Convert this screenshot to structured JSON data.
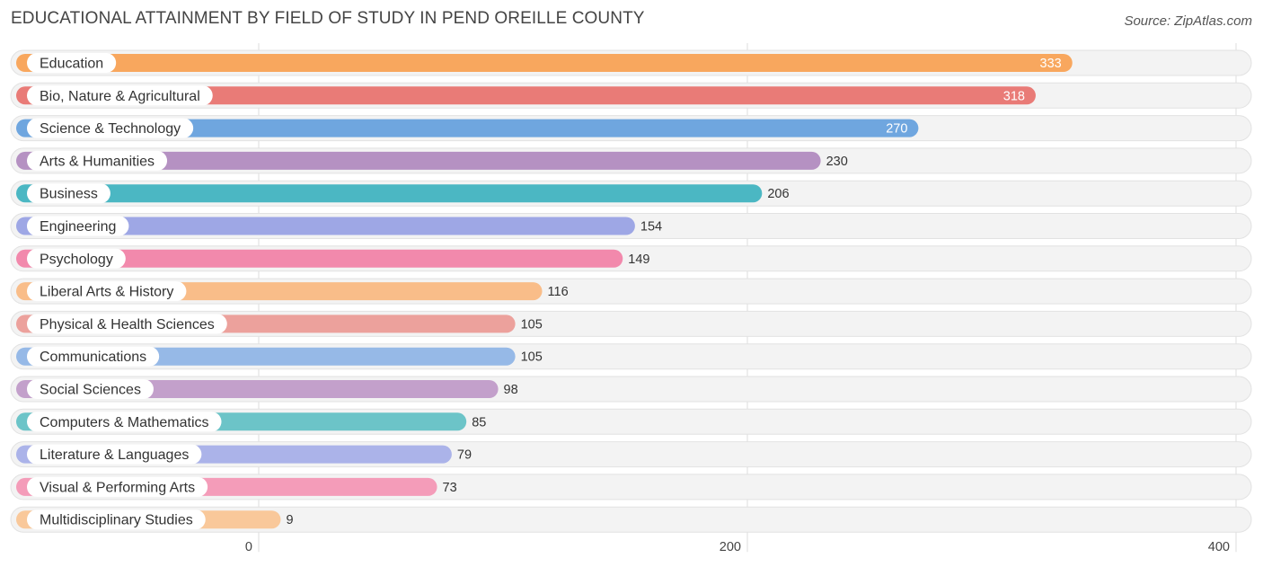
{
  "header": {
    "title": "EDUCATIONAL ATTAINMENT BY FIELD OF STUDY IN PEND OREILLE COUNTY",
    "source": "Source: ZipAtlas.com"
  },
  "chart_data": {
    "type": "bar",
    "orientation": "horizontal",
    "title": "EDUCATIONAL ATTAINMENT BY FIELD OF STUDY IN PEND OREILLE COUNTY",
    "xlabel": "",
    "ylabel": "",
    "xlim": [
      0,
      400
    ],
    "ticks": [
      0,
      200,
      400
    ],
    "grid": true,
    "categories": [
      "Education",
      "Bio, Nature & Agricultural",
      "Science & Technology",
      "Arts & Humanities",
      "Business",
      "Engineering",
      "Psychology",
      "Liberal Arts & History",
      "Physical & Health Sciences",
      "Communications",
      "Social Sciences",
      "Computers & Mathematics",
      "Literature & Languages",
      "Visual & Performing Arts",
      "Multidisciplinary Studies"
    ],
    "values": [
      333,
      318,
      270,
      230,
      206,
      154,
      149,
      116,
      105,
      105,
      98,
      85,
      79,
      73,
      9
    ],
    "value_labels": [
      "333",
      "318",
      "270",
      "230",
      "206",
      "154",
      "149",
      "116",
      "105",
      "105",
      "98",
      "85",
      "79",
      "73",
      "9"
    ],
    "colors": [
      "#f8a75e",
      "#e97b77",
      "#6fa6df",
      "#b591c2",
      "#4bb7c3",
      "#9ea7e5",
      "#f289ac",
      "#f9bd89",
      "#eca19c",
      "#96b9e7",
      "#c3a0cb",
      "#6cc4c8",
      "#abb3e9",
      "#f49cb9",
      "#f9c89a"
    ]
  }
}
